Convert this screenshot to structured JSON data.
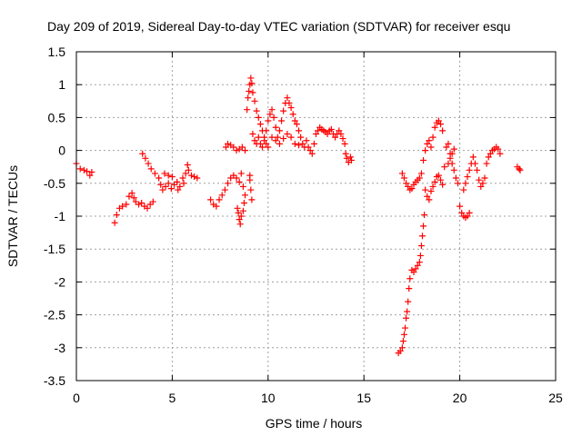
{
  "chart_data": {
    "type": "scatter",
    "title": "Day 209 of 2019, Sidereal Day-to-day VTEC variation (SDTVAR) for receiver esqu",
    "xlabel": "GPS time / hours",
    "ylabel": "SDTVAR / TECUs",
    "xlim": [
      0,
      25
    ],
    "ylim": [
      -3.5,
      1.5
    ],
    "x_ticks": [
      "0",
      "5",
      "10",
      "15",
      "20",
      "25"
    ],
    "x_tick_values": [
      0,
      5,
      10,
      15,
      20,
      25
    ],
    "y_ticks": [
      "1.5",
      "1",
      "0.5",
      "0",
      "-0.5",
      "-1",
      "-1.5",
      "-2",
      "-2.5",
      "-3",
      "-3.5"
    ],
    "y_tick_values": [
      1.5,
      1,
      0.5,
      0,
      -0.5,
      -1,
      -1.5,
      -2,
      -2.5,
      -3,
      -3.5
    ],
    "grid": true,
    "marker": "+",
    "color": "#ff0000",
    "series": [
      {
        "name": "SDTVAR",
        "points": [
          [
            0.0,
            -0.2
          ],
          [
            0.2,
            -0.28
          ],
          [
            0.4,
            -0.3
          ],
          [
            0.55,
            -0.32
          ],
          [
            0.7,
            -0.38
          ],
          [
            0.8,
            -0.33
          ],
          [
            2.0,
            -1.1
          ],
          [
            2.1,
            -0.98
          ],
          [
            2.25,
            -0.88
          ],
          [
            2.4,
            -0.85
          ],
          [
            2.6,
            -0.82
          ],
          [
            2.75,
            -0.7
          ],
          [
            2.9,
            -0.65
          ],
          [
            3.0,
            -0.72
          ],
          [
            3.1,
            -0.78
          ],
          [
            3.25,
            -0.82
          ],
          [
            3.4,
            -0.8
          ],
          [
            3.55,
            -0.85
          ],
          [
            3.7,
            -0.88
          ],
          [
            3.85,
            -0.82
          ],
          [
            4.0,
            -0.78
          ],
          [
            3.45,
            -0.05
          ],
          [
            3.6,
            -0.12
          ],
          [
            3.75,
            -0.2
          ],
          [
            3.9,
            -0.28
          ],
          [
            4.1,
            -0.35
          ],
          [
            4.3,
            -0.42
          ],
          [
            4.4,
            -0.52
          ],
          [
            4.5,
            -0.6
          ],
          [
            4.65,
            -0.55
          ],
          [
            4.8,
            -0.5
          ],
          [
            4.95,
            -0.58
          ],
          [
            5.1,
            -0.52
          ],
          [
            5.25,
            -0.48
          ],
          [
            5.4,
            -0.55
          ],
          [
            5.55,
            -0.42
          ],
          [
            5.7,
            -0.35
          ],
          [
            5.85,
            -0.3
          ],
          [
            6.0,
            -0.38
          ],
          [
            6.15,
            -0.4
          ],
          [
            6.3,
            -0.42
          ],
          [
            4.6,
            -0.35
          ],
          [
            4.8,
            -0.38
          ],
          [
            5.0,
            -0.4
          ],
          [
            5.3,
            -0.6
          ],
          [
            5.6,
            -0.5
          ],
          [
            5.8,
            -0.22
          ],
          [
            7.0,
            -0.75
          ],
          [
            7.15,
            -0.82
          ],
          [
            7.3,
            -0.85
          ],
          [
            7.45,
            -0.75
          ],
          [
            7.6,
            -0.68
          ],
          [
            7.75,
            -0.6
          ],
          [
            7.9,
            -0.5
          ],
          [
            8.05,
            -0.42
          ],
          [
            8.2,
            -0.38
          ],
          [
            8.35,
            -0.42
          ],
          [
            8.5,
            -0.48
          ],
          [
            8.6,
            -0.35
          ],
          [
            8.7,
            -0.55
          ],
          [
            8.4,
            -0.88
          ],
          [
            8.45,
            -0.95
          ],
          [
            8.5,
            -1.05
          ],
          [
            8.55,
            -1.12
          ],
          [
            8.6,
            -1.0
          ],
          [
            8.7,
            -0.92
          ],
          [
            8.75,
            -0.8
          ],
          [
            8.8,
            -0.68
          ],
          [
            7.8,
            0.05
          ],
          [
            7.9,
            0.1
          ],
          [
            8.05,
            0.08
          ],
          [
            8.2,
            0.05
          ],
          [
            8.35,
            0.0
          ],
          [
            8.5,
            0.02
          ],
          [
            8.65,
            0.05
          ],
          [
            8.8,
            0.0
          ],
          [
            8.9,
            0.62
          ],
          [
            8.95,
            0.8
          ],
          [
            9.0,
            0.9
          ],
          [
            9.05,
            1.0
          ],
          [
            9.1,
            1.1
          ],
          [
            9.15,
            1.02
          ],
          [
            9.2,
            0.88
          ],
          [
            9.3,
            0.75
          ],
          [
            9.4,
            0.6
          ],
          [
            9.5,
            0.5
          ],
          [
            9.6,
            0.4
          ],
          [
            9.7,
            0.3
          ],
          [
            9.8,
            0.2
          ],
          [
            9.9,
            0.1
          ],
          [
            10.0,
            0.05
          ],
          [
            9.05,
            -0.45
          ],
          [
            9.1,
            -0.6
          ],
          [
            9.15,
            -0.75
          ],
          [
            9.05,
            -0.38
          ],
          [
            9.2,
            0.25
          ],
          [
            9.3,
            0.15
          ],
          [
            9.4,
            0.1
          ],
          [
            9.5,
            0.2
          ],
          [
            9.6,
            0.1
          ],
          [
            9.7,
            0.05
          ],
          [
            9.8,
            0.15
          ],
          [
            9.9,
            0.3
          ],
          [
            10.0,
            0.45
          ],
          [
            10.1,
            0.55
          ],
          [
            10.2,
            0.62
          ],
          [
            10.3,
            0.5
          ],
          [
            10.4,
            0.35
          ],
          [
            10.5,
            0.2
          ],
          [
            10.6,
            0.3
          ],
          [
            10.7,
            0.45
          ],
          [
            10.8,
            0.6
          ],
          [
            10.9,
            0.72
          ],
          [
            11.0,
            0.8
          ],
          [
            11.1,
            0.72
          ],
          [
            11.2,
            0.65
          ],
          [
            11.3,
            0.55
          ],
          [
            11.4,
            0.45
          ],
          [
            11.5,
            0.4
          ],
          [
            11.6,
            0.3
          ],
          [
            11.7,
            0.2
          ],
          [
            11.8,
            0.1
          ],
          [
            11.9,
            0.05
          ],
          [
            10.2,
            0.2
          ],
          [
            10.4,
            0.15
          ],
          [
            10.6,
            0.1
          ],
          [
            10.8,
            0.18
          ],
          [
            11.0,
            0.25
          ],
          [
            11.2,
            0.2
          ],
          [
            11.4,
            0.1
          ],
          [
            11.6,
            0.08
          ],
          [
            12.0,
            0.15
          ],
          [
            12.1,
            0.05
          ],
          [
            12.2,
            0.0
          ],
          [
            12.3,
            -0.05
          ],
          [
            12.4,
            0.1
          ],
          [
            12.5,
            0.25
          ],
          [
            12.6,
            0.3
          ],
          [
            12.7,
            0.35
          ],
          [
            12.8,
            0.32
          ],
          [
            12.9,
            0.3
          ],
          [
            13.0,
            0.28
          ],
          [
            13.1,
            0.25
          ],
          [
            13.2,
            0.3
          ],
          [
            13.3,
            0.32
          ],
          [
            13.4,
            0.25
          ],
          [
            13.5,
            0.2
          ],
          [
            13.6,
            0.25
          ],
          [
            13.7,
            0.3
          ],
          [
            13.8,
            0.25
          ],
          [
            13.9,
            0.18
          ],
          [
            14.0,
            0.1
          ],
          [
            14.05,
            -0.05
          ],
          [
            14.1,
            -0.12
          ],
          [
            14.2,
            -0.18
          ],
          [
            14.3,
            -0.1
          ],
          [
            14.35,
            -0.15
          ],
          [
            16.8,
            -3.08
          ],
          [
            16.9,
            -3.05
          ],
          [
            17.0,
            -3.0
          ],
          [
            17.05,
            -2.9
          ],
          [
            17.1,
            -2.8
          ],
          [
            17.15,
            -2.7
          ],
          [
            17.2,
            -2.55
          ],
          [
            17.25,
            -2.45
          ],
          [
            17.3,
            -2.3
          ],
          [
            17.35,
            -2.1
          ],
          [
            17.4,
            -1.95
          ],
          [
            17.5,
            -1.82
          ],
          [
            17.6,
            -1.85
          ],
          [
            17.7,
            -1.8
          ],
          [
            17.8,
            -1.75
          ],
          [
            17.9,
            -1.7
          ],
          [
            17.95,
            -1.6
          ],
          [
            18.0,
            -1.45
          ],
          [
            18.05,
            -1.3
          ],
          [
            18.1,
            -1.15
          ],
          [
            18.15,
            -0.98
          ],
          [
            17.0,
            -0.35
          ],
          [
            17.1,
            -0.42
          ],
          [
            17.2,
            -0.5
          ],
          [
            17.3,
            -0.55
          ],
          [
            17.4,
            -0.6
          ],
          [
            17.5,
            -0.58
          ],
          [
            17.6,
            -0.52
          ],
          [
            17.7,
            -0.48
          ],
          [
            17.8,
            -0.45
          ],
          [
            17.9,
            -0.42
          ],
          [
            18.0,
            -0.35
          ],
          [
            18.1,
            -0.15
          ],
          [
            18.2,
            0.0
          ],
          [
            18.3,
            0.1
          ],
          [
            18.4,
            0.15
          ],
          [
            18.5,
            0.05
          ],
          [
            18.6,
            0.2
          ],
          [
            18.7,
            0.35
          ],
          [
            18.8,
            0.42
          ],
          [
            18.9,
            0.45
          ],
          [
            19.0,
            0.4
          ],
          [
            19.1,
            0.3
          ],
          [
            18.2,
            -0.6
          ],
          [
            18.3,
            -0.7
          ],
          [
            18.4,
            -0.75
          ],
          [
            18.5,
            -0.62
          ],
          [
            18.6,
            -0.55
          ],
          [
            18.7,
            -0.48
          ],
          [
            18.8,
            -0.4
          ],
          [
            18.9,
            -0.38
          ],
          [
            19.0,
            -0.45
          ],
          [
            19.1,
            -0.52
          ],
          [
            19.2,
            -0.25
          ],
          [
            19.3,
            0.05
          ],
          [
            19.4,
            0.1
          ],
          [
            19.5,
            -0.05
          ],
          [
            19.6,
            -0.2
          ],
          [
            19.7,
            -0.3
          ],
          [
            19.8,
            -0.42
          ],
          [
            19.9,
            -0.5
          ],
          [
            19.4,
            -0.2
          ],
          [
            19.5,
            -0.12
          ],
          [
            19.6,
            -0.05
          ],
          [
            19.7,
            0.02
          ],
          [
            20.0,
            -0.85
          ],
          [
            20.1,
            -0.95
          ],
          [
            20.2,
            -1.0
          ],
          [
            20.3,
            -1.02
          ],
          [
            20.4,
            -1.0
          ],
          [
            20.5,
            -0.95
          ],
          [
            20.2,
            -0.6
          ],
          [
            20.3,
            -0.5
          ],
          [
            20.4,
            -0.4
          ],
          [
            20.5,
            -0.3
          ],
          [
            20.6,
            -0.2
          ],
          [
            20.7,
            -0.1
          ],
          [
            20.8,
            -0.2
          ],
          [
            20.9,
            -0.3
          ],
          [
            21.0,
            -0.45
          ],
          [
            21.1,
            -0.55
          ],
          [
            21.2,
            -0.5
          ],
          [
            21.3,
            -0.42
          ],
          [
            21.4,
            -0.2
          ],
          [
            21.5,
            -0.1
          ],
          [
            21.6,
            -0.05
          ],
          [
            21.7,
            0.0
          ],
          [
            21.8,
            0.02
          ],
          [
            21.9,
            0.05
          ],
          [
            22.0,
            0.02
          ],
          [
            22.1,
            -0.05
          ],
          [
            23.0,
            -0.25
          ],
          [
            23.1,
            -0.28
          ],
          [
            23.15,
            -0.3
          ]
        ]
      }
    ]
  }
}
